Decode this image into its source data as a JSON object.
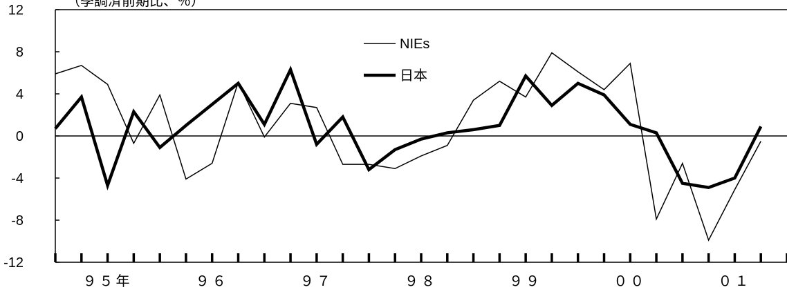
{
  "chart_data": {
    "type": "line",
    "title": "",
    "unit_note": "（季調済前期比、％）",
    "xlabel": "",
    "ylabel": "",
    "ylim": [
      -12,
      12
    ],
    "yticks": [
      "12",
      "8",
      "4",
      "0",
      "-4",
      "-8",
      "-12"
    ],
    "ytick_values": [
      12,
      8,
      4,
      0,
      -4,
      -8,
      -12
    ],
    "grid": false,
    "legend_position": "top-center",
    "x_quarters": 28,
    "x_labels": [
      {
        "text": "９５年",
        "quarter": 2
      },
      {
        "text": "９６",
        "quarter": 6
      },
      {
        "text": "９７",
        "quarter": 10
      },
      {
        "text": "９８",
        "quarter": 14
      },
      {
        "text": "９９",
        "quarter": 18
      },
      {
        "text": "００",
        "quarter": 22
      },
      {
        "text": "０１",
        "quarter": 26
      }
    ],
    "series": [
      {
        "name": "NIEs",
        "color": "#000000",
        "line_style": "thin",
        "values": [
          5.9,
          6.7,
          4.9,
          -0.7,
          3.9,
          -4.1,
          -2.6,
          5.1,
          -0.1,
          3.1,
          2.7,
          -2.7,
          -2.7,
          -3.1,
          -1.9,
          -0.9,
          3.4,
          5.2,
          3.7,
          7.9,
          6.1,
          4.4,
          6.9,
          -7.9,
          -2.6,
          -9.9,
          -5.1,
          -0.5
        ]
      },
      {
        "name": "日本",
        "color": "#000000",
        "line_style": "thick",
        "values": [
          0.7,
          3.7,
          -4.7,
          2.3,
          -1.1,
          1.0,
          3.0,
          5.0,
          1.1,
          6.3,
          -0.8,
          1.8,
          -3.2,
          -1.3,
          -0.3,
          0.3,
          0.6,
          1.0,
          5.7,
          2.9,
          5.0,
          3.9,
          1.1,
          0.3,
          -4.5,
          -4.9,
          -4.0,
          0.9
        ]
      }
    ]
  }
}
